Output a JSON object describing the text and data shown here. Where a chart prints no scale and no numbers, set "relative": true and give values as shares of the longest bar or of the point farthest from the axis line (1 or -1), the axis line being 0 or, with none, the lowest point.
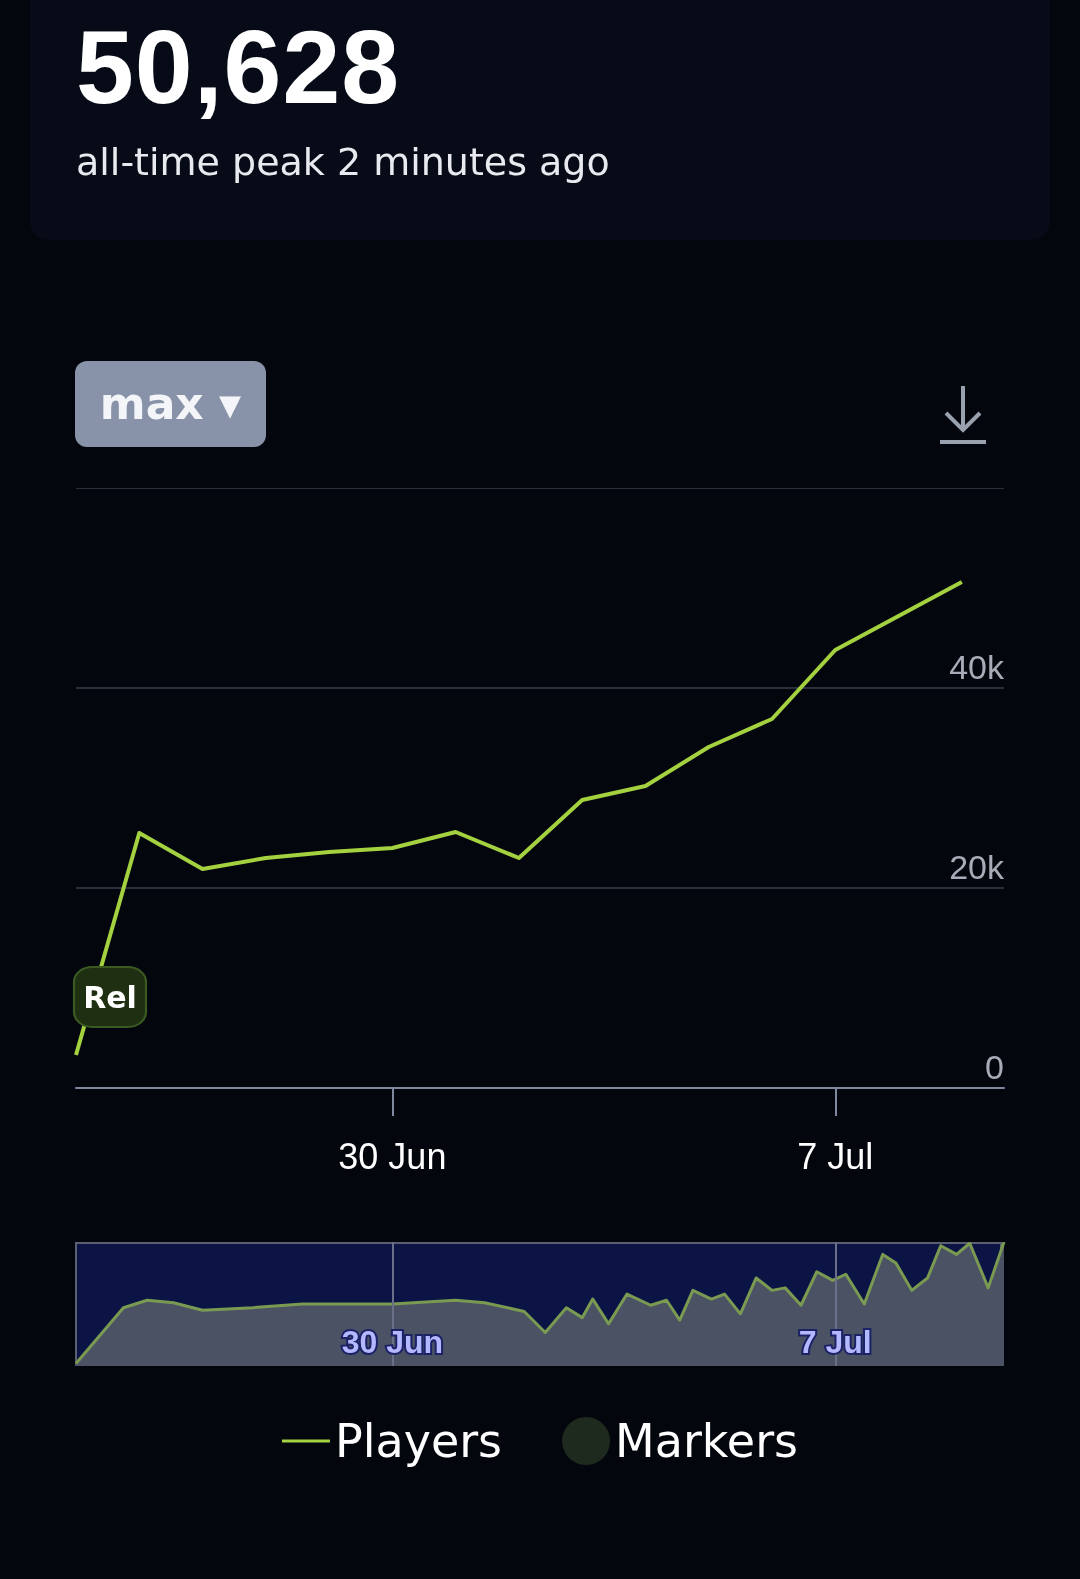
{
  "chart_data": [
    {
      "type": "line",
      "title": "50,628",
      "subtitle": "all-time peak 2 minutes ago",
      "x": [
        "--06-25",
        "--06-26",
        "--06-27",
        "--06-28",
        "--06-29",
        "--06-30",
        "--07-01",
        "--07-02",
        "--07-03",
        "--07-04",
        "--07-05",
        "--07-06",
        "--07-07",
        "--07-08",
        "--07-09"
      ],
      "series": [
        {
          "name": "Players",
          "color": "#a4d13f",
          "values": [
            3300,
            25500,
            21900,
            23000,
            23600,
            24000,
            25600,
            23000,
            28800,
            30200,
            34100,
            36900,
            43800,
            47200,
            50600
          ]
        },
        {
          "name": "Markers",
          "type": "scatter",
          "color": "#263322",
          "values": [
            null,
            null,
            null,
            null,
            null,
            null,
            null,
            null,
            null,
            null,
            null,
            null,
            null,
            null,
            null
          ]
        }
      ],
      "xlim": [
        "--06-25",
        "--07-09T16:00"
      ],
      "xticks": [
        {
          "value": "--06-30",
          "label": "30 Jun"
        },
        {
          "value": "--07-07",
          "label": "7 Jul"
        }
      ],
      "ylim": [
        0,
        60000
      ],
      "yticks": [
        0,
        {
          "value": 20000,
          "label": "20k"
        },
        {
          "value": 40000,
          "label": "40k"
        },
        {
          "value": 60000,
          "label": null
        }
      ],
      "grid": "y",
      "legend": "bottom",
      "marker": "none",
      "annotations": [
        {
          "text": "Rel",
          "x": "--06-25",
          "y": 3300
        },
        "max ▾"
      ]
    },
    {
      "type": "area",
      "relative": true,
      "grid": "x",
      "marker": "none",
      "color": "#4b5264",
      "x": [
        "--06-25T00:00",
        "--06-25T10:00",
        "--06-25T18:00",
        "--06-26T03:00",
        "--06-26T13:00",
        "--06-27T00:00",
        "--06-27T19:00",
        "--06-28T14:00",
        "--06-30T00:00",
        "--07-01T00:00",
        "--07-01T11:00",
        "--07-02T02:00",
        "--07-02T10:00",
        "--07-02T18:00",
        "--07-03T00:00",
        "--07-03T04:00",
        "--07-03T10:00",
        "--07-03T17:00",
        "--07-04T02:00",
        "--07-04T08:00",
        "--07-04T13:00",
        "--07-04T18:00",
        "--07-05T01:00",
        "--07-05T06:00",
        "--07-05T12:00",
        "--07-05T18:00",
        "--07-06T00:00",
        "--07-06T05:00",
        "--07-06T11:00",
        "--07-06T17:00",
        "--07-06T23:00",
        "--07-07T04:00",
        "--07-07T11:00",
        "--07-07T18:00",
        "--07-07T23:00",
        "--07-08T05:00",
        "--07-08T11:00",
        "--07-08T16:00",
        "--07-08T22:00",
        "--07-09T03:00",
        "--07-09T10:00",
        "--07-09T16:00"
      ],
      "values": [
        0.02,
        0.27,
        0.47,
        0.53,
        0.51,
        0.45,
        0.47,
        0.5,
        0.5,
        0.53,
        0.51,
        0.44,
        0.27,
        0.47,
        0.39,
        0.54,
        0.34,
        0.58,
        0.49,
        0.53,
        0.37,
        0.61,
        0.54,
        0.58,
        0.42,
        0.71,
        0.61,
        0.63,
        0.49,
        0.76,
        0.69,
        0.74,
        0.5,
        0.9,
        0.83,
        0.61,
        0.71,
        0.97,
        0.9,
        0.99,
        0.63,
        1
      ],
      "xlim": [
        "--06-25T00:00",
        "--07-09T16:00"
      ],
      "xticks": [
        {
          "value": "--06-30",
          "label": "30 Jun"
        },
        {
          "value": "--07-07",
          "label": "7 Jul"
        }
      ]
    }
  ]
}
